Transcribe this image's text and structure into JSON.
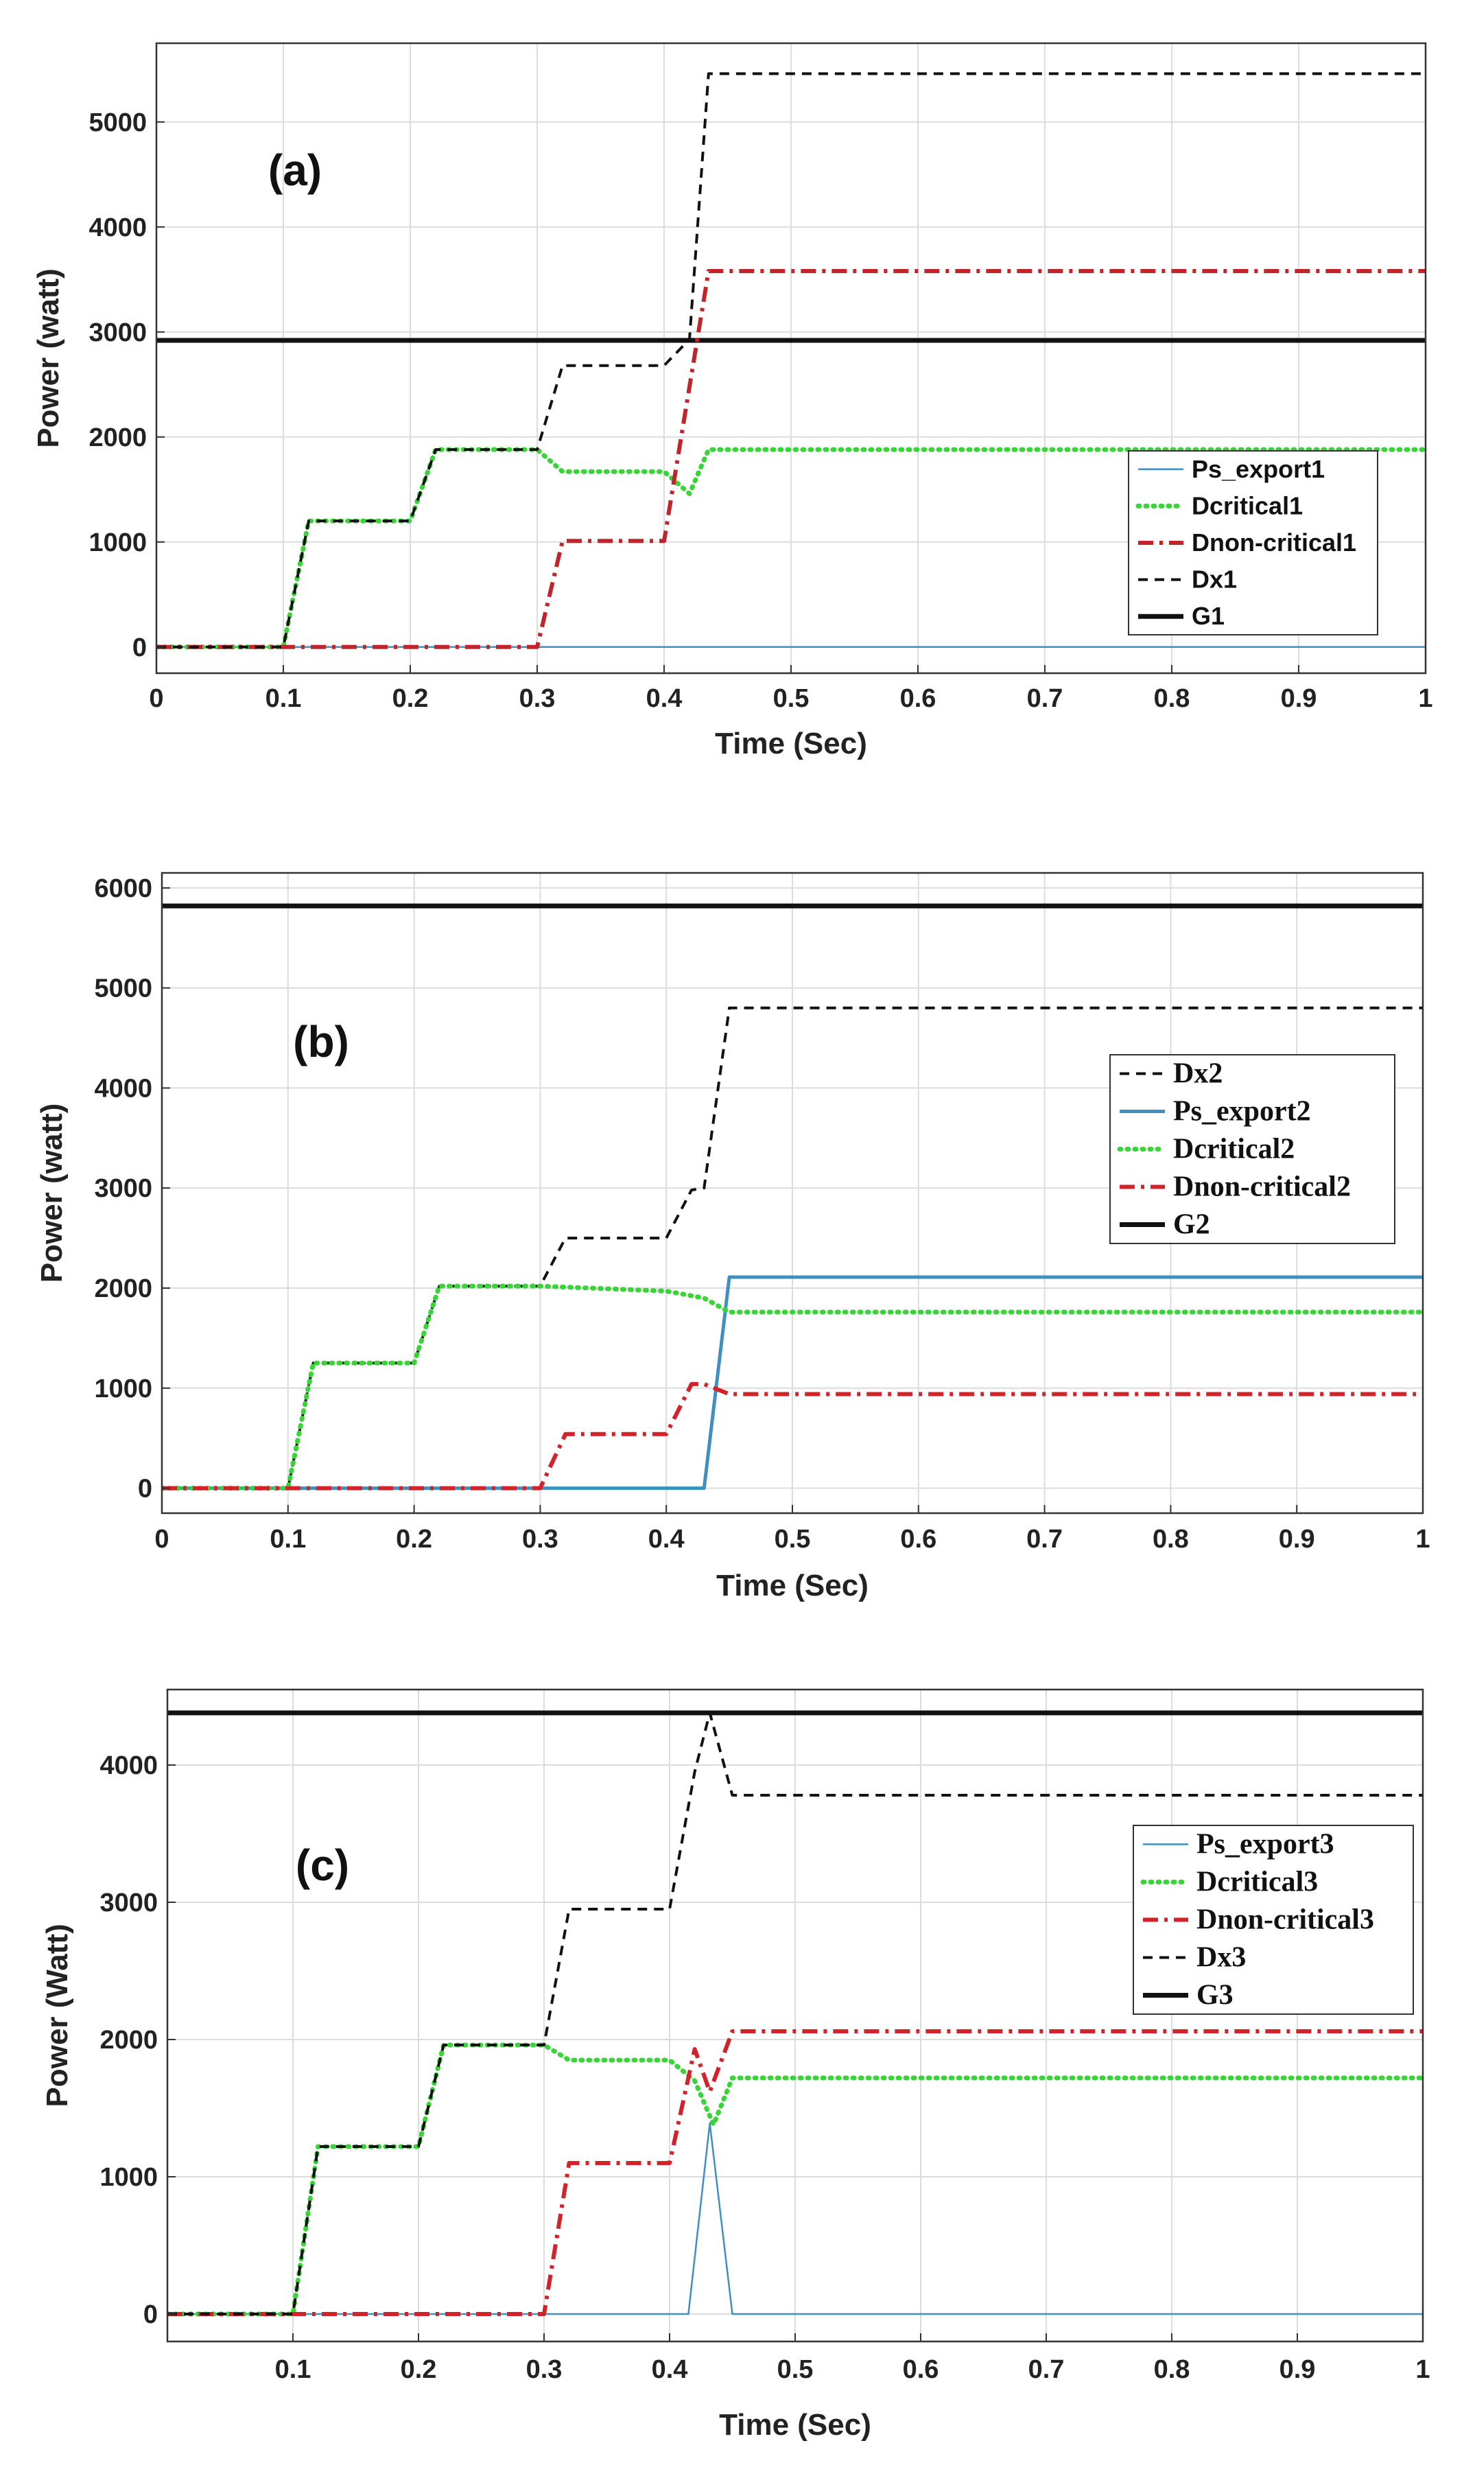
{
  "chart_data": [
    {
      "type": "line",
      "panel_label": "(a)",
      "xlabel": "Time (Sec)",
      "ylabel": "Power (watt)",
      "xlim": [
        0,
        1
      ],
      "ylim": [
        -250,
        5750
      ],
      "x_ticks": [
        "0",
        "0.1",
        "0.2",
        "0.3",
        "0.4",
        "0.5",
        "0.6",
        "0.7",
        "0.8",
        "0.9",
        "1"
      ],
      "y_ticks": [
        "0",
        "1000",
        "2000",
        "3000",
        "4000",
        "5000"
      ],
      "grid": true,
      "legend_position": "lower-right",
      "legend_font": "sans",
      "legend_order": [
        "Ps_export1",
        "Dcritical1",
        "Dnon-critical1",
        "Dx1",
        "G1"
      ],
      "series": [
        {
          "name": "Ps_export1",
          "color": "#3f8fc0",
          "style": "solid-thin",
          "x": [
            0,
            1
          ],
          "y": [
            0,
            0
          ]
        },
        {
          "name": "Dcritical1",
          "color": "#3ad43a",
          "style": "dotted",
          "x": [
            0,
            0.1,
            0.12,
            0.2,
            0.22,
            0.3,
            0.32,
            0.4,
            0.42,
            0.435,
            1
          ],
          "y": [
            0,
            0,
            1200,
            1200,
            1880,
            1880,
            1670,
            1670,
            1460,
            1880,
            1880
          ]
        },
        {
          "name": "Dnon-critical1",
          "color": "#c0252b",
          "style": "dash-dot",
          "x": [
            0,
            0.3,
            0.32,
            0.4,
            0.435,
            1
          ],
          "y": [
            0,
            0,
            1010,
            1010,
            3580,
            3580
          ]
        },
        {
          "name": "Dx1",
          "color": "#111111",
          "style": "dashed",
          "x": [
            0,
            0.1,
            0.12,
            0.2,
            0.22,
            0.3,
            0.32,
            0.4,
            0.42,
            0.435,
            1
          ],
          "y": [
            0,
            0,
            1200,
            1200,
            1880,
            1880,
            2680,
            2680,
            2930,
            5460,
            5460
          ]
        },
        {
          "name": "G1",
          "color": "#111111",
          "style": "solid-thick",
          "x": [
            0,
            1
          ],
          "y": [
            2920,
            2920
          ]
        }
      ]
    },
    {
      "type": "line",
      "panel_label": "(b)",
      "xlabel": "Time (Sec)",
      "ylabel": "Power (watt)",
      "xlim": [
        0,
        1
      ],
      "ylim": [
        -250,
        6150
      ],
      "x_ticks": [
        "0",
        "0.1",
        "0.2",
        "0.3",
        "0.4",
        "0.5",
        "0.6",
        "0.7",
        "0.8",
        "0.9",
        "1"
      ],
      "y_ticks": [
        "0",
        "1000",
        "2000",
        "3000",
        "4000",
        "5000",
        "6000"
      ],
      "grid": true,
      "legend_position": "middle-right",
      "legend_font": "serif",
      "legend_order": [
        "Dx2",
        "Ps_export2",
        "Dcritical2",
        "Dnon-critical2",
        "G2"
      ],
      "series": [
        {
          "name": "Dx2",
          "color": "#111111",
          "style": "dashed",
          "x": [
            0,
            0.1,
            0.12,
            0.2,
            0.22,
            0.3,
            0.32,
            0.4,
            0.42,
            0.43,
            0.45,
            1
          ],
          "y": [
            0,
            0,
            1250,
            1250,
            2020,
            2020,
            2500,
            2500,
            2980,
            3000,
            4800,
            4800
          ]
        },
        {
          "name": "Ps_export2",
          "color": "#3f8fc0",
          "style": "solid",
          "x": [
            0,
            0.43,
            0.45,
            1
          ],
          "y": [
            0,
            0,
            2110,
            2110
          ]
        },
        {
          "name": "Dcritical2",
          "color": "#3ad43a",
          "style": "dotted",
          "x": [
            0,
            0.1,
            0.12,
            0.2,
            0.22,
            0.3,
            0.4,
            0.43,
            0.45,
            1
          ],
          "y": [
            0,
            0,
            1250,
            1250,
            2020,
            2020,
            1970,
            1900,
            1760,
            1760
          ]
        },
        {
          "name": "Dnon-critical2",
          "color": "#d4222a",
          "style": "dash-dot",
          "x": [
            0,
            0.3,
            0.32,
            0.4,
            0.42,
            0.43,
            0.45,
            1
          ],
          "y": [
            0,
            0,
            540,
            540,
            1040,
            1040,
            940,
            940
          ]
        },
        {
          "name": "G2",
          "color": "#111111",
          "style": "solid-thick",
          "x": [
            0,
            1
          ],
          "y": [
            5820,
            5820
          ]
        }
      ]
    },
    {
      "type": "line",
      "panel_label": "(c)",
      "xlabel": "Time (Sec)",
      "ylabel": "Power (Watt)",
      "xlim": [
        0,
        1
      ],
      "ylim": [
        -200,
        4550
      ],
      "x_ticks": [
        "0.1",
        "0.2",
        "0.3",
        "0.4",
        "0.5",
        "0.6",
        "0.7",
        "0.8",
        "0.9",
        "1"
      ],
      "y_ticks": [
        "0",
        "1000",
        "2000",
        "3000",
        "4000"
      ],
      "grid": true,
      "legend_position": "middle-right",
      "legend_font": "serif",
      "legend_order": [
        "Ps_export3",
        "Dcritical3",
        "Dnon-critical3",
        "Dx3",
        "G3"
      ],
      "series": [
        {
          "name": "Ps_export3",
          "color": "#3f8fc0",
          "style": "solid-thin",
          "x": [
            0,
            0.415,
            0.432,
            0.45,
            1
          ],
          "y": [
            0,
            0,
            1390,
            0,
            0
          ]
        },
        {
          "name": "Dcritical3",
          "color": "#3ad43a",
          "style": "dotted",
          "x": [
            0,
            0.1,
            0.12,
            0.2,
            0.22,
            0.3,
            0.32,
            0.4,
            0.42,
            0.435,
            0.45,
            1
          ],
          "y": [
            0,
            0,
            1220,
            1220,
            1960,
            1960,
            1850,
            1850,
            1700,
            1380,
            1720,
            1720
          ]
        },
        {
          "name": "Dnon-critical3",
          "color": "#d4222a",
          "style": "dash-dot",
          "x": [
            0,
            0.3,
            0.32,
            0.4,
            0.42,
            0.432,
            0.45,
            1
          ],
          "y": [
            0,
            0,
            1100,
            1100,
            1930,
            1620,
            2060,
            2060
          ]
        },
        {
          "name": "Dx3",
          "color": "#111111",
          "style": "dashed",
          "x": [
            0,
            0.1,
            0.12,
            0.2,
            0.22,
            0.3,
            0.32,
            0.4,
            0.42,
            0.432,
            0.45,
            1
          ],
          "y": [
            0,
            0,
            1220,
            1220,
            1960,
            1960,
            2950,
            2950,
            3950,
            4380,
            3780,
            3780
          ]
        },
        {
          "name": "G3",
          "color": "#111111",
          "style": "solid-thick",
          "x": [
            0,
            1
          ],
          "y": [
            4380,
            4380
          ]
        }
      ]
    }
  ]
}
